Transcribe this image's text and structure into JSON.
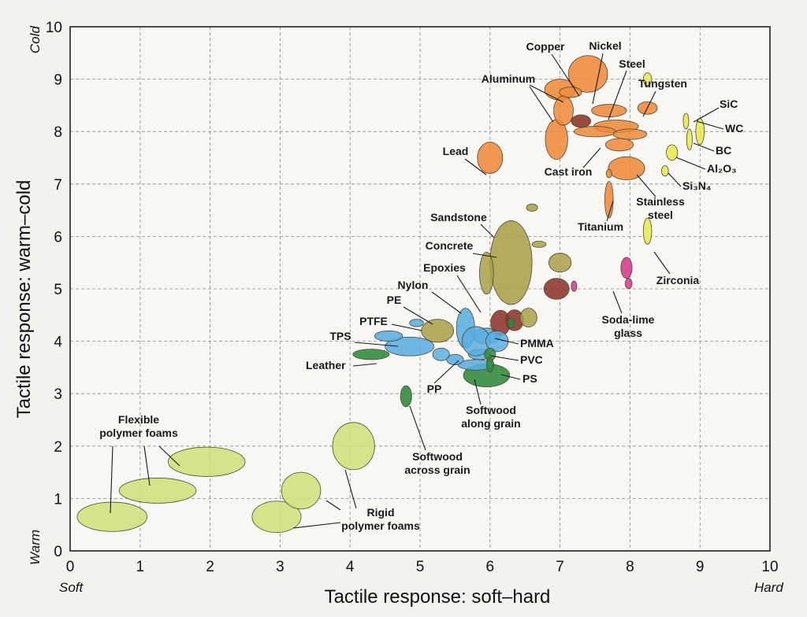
{
  "chart_data": {
    "type": "scatter",
    "title": "",
    "xlabel": "Tactile response: soft–hard",
    "ylabel": "Tactile response: warm–cold",
    "xlim": [
      0,
      10
    ],
    "ylim": [
      0,
      10
    ],
    "x_ticks": [
      "0",
      "1",
      "2",
      "3",
      "4",
      "5",
      "6",
      "7",
      "8",
      "9",
      "10"
    ],
    "y_ticks": [
      "0",
      "1",
      "2",
      "3",
      "4",
      "5",
      "6",
      "7",
      "8",
      "9",
      "10"
    ],
    "x_end_labels": {
      "low": "Soft",
      "high": "Hard"
    },
    "y_end_labels": {
      "low": "Warm",
      "high": "Cold"
    },
    "grid": true,
    "colors": {
      "foam": "#cfe07a",
      "metal": "#ee8a3a",
      "metal_dark": "#8b2b20",
      "ceramic": "#e6ea50",
      "glass": "#d63b8c",
      "stone": "#a8a048",
      "polymer": "#5aaee0",
      "wood": "#2f8a3a",
      "reddish": "#8b2f25"
    },
    "materials": [
      {
        "label": "Flexible polymer foams",
        "color": "foam",
        "regions": [
          [
            0.6,
            0.65,
            0.5,
            0.28
          ],
          [
            1.25,
            1.15,
            0.55,
            0.24
          ],
          [
            1.95,
            1.7,
            0.55,
            0.28
          ]
        ]
      },
      {
        "label": "Rigid polymer foams",
        "color": "foam",
        "regions": [
          [
            2.95,
            0.65,
            0.35,
            0.3
          ],
          [
            3.3,
            1.15,
            0.28,
            0.35
          ],
          [
            4.05,
            2.0,
            0.3,
            0.45
          ]
        ]
      },
      {
        "label": "Softwood across grain",
        "color": "wood",
        "regions": [
          [
            4.8,
            2.95,
            0.08,
            0.2
          ]
        ]
      },
      {
        "label": "Softwood along grain",
        "color": "wood",
        "regions": [
          [
            5.95,
            3.35,
            0.33,
            0.22
          ]
        ]
      },
      {
        "label": "Leather",
        "color": "wood",
        "regions": [
          [
            4.3,
            3.75,
            0.26,
            0.1
          ]
        ]
      },
      {
        "label": "PS",
        "color": "polymer",
        "regions": [
          [
            5.8,
            3.55,
            0.26,
            0.1
          ]
        ]
      },
      {
        "label": "PVC",
        "color": "polymer",
        "regions": [
          [
            5.85,
            3.75,
            0.16,
            0.1
          ]
        ]
      },
      {
        "label": "PMMA",
        "color": "polymer",
        "regions": [
          [
            5.95,
            4.1,
            0.2,
            0.15
          ]
        ]
      },
      {
        "label": "PP",
        "color": "polymer",
        "regions": [
          [
            5.5,
            3.65,
            0.12,
            0.1
          ]
        ]
      },
      {
        "label": "TPS",
        "color": "polymer",
        "regions": [
          [
            4.85,
            3.9,
            0.35,
            0.18
          ]
        ]
      },
      {
        "label": "PTFE",
        "color": "polymer",
        "regions": [
          [
            4.55,
            4.1,
            0.2,
            0.1
          ]
        ]
      },
      {
        "label": "PE",
        "color": "polymer",
        "regions": [
          [
            4.95,
            4.35,
            0.1,
            0.07
          ]
        ]
      },
      {
        "label": "Nylon",
        "color": "polymer",
        "regions": [
          [
            5.65,
            4.25,
            0.13,
            0.38
          ]
        ]
      },
      {
        "label": "Epoxies",
        "color": "stone",
        "regions": [
          [
            5.25,
            4.2,
            0.23,
            0.22
          ]
        ]
      },
      {
        "label": "Concrete",
        "color": "stone",
        "regions": [
          [
            6.3,
            5.5,
            0.3,
            0.8
          ]
        ]
      },
      {
        "label": "Sandstone",
        "color": "stone",
        "regions": [
          [
            6.6,
            6.55,
            0.08,
            0.07
          ]
        ]
      },
      {
        "label": "Lead",
        "color": "metal",
        "regions": [
          [
            6.0,
            7.5,
            0.18,
            0.3
          ]
        ]
      },
      {
        "label": "Aluminum",
        "color": "metal",
        "regions": [
          [
            7.0,
            8.8,
            0.22,
            0.2
          ]
        ]
      },
      {
        "label": "Copper",
        "color": "metal",
        "regions": [
          [
            7.4,
            9.1,
            0.28,
            0.35
          ]
        ]
      },
      {
        "label": "Nickel",
        "color": "metal",
        "regions": [
          [
            7.7,
            8.4,
            0.25,
            0.12
          ]
        ]
      },
      {
        "label": "Steel",
        "color": "metal",
        "regions": [
          [
            7.8,
            8.1,
            0.32,
            0.12
          ]
        ]
      },
      {
        "label": "Tungsten",
        "color": "metal",
        "regions": [
          [
            8.25,
            8.45,
            0.14,
            0.12
          ]
        ]
      },
      {
        "label": "Cast iron",
        "color": "metal",
        "regions": [
          [
            6.95,
            7.85,
            0.16,
            0.38
          ]
        ]
      },
      {
        "label": "Titanium",
        "color": "metal",
        "regions": [
          [
            7.7,
            6.7,
            0.06,
            0.35
          ]
        ]
      },
      {
        "label": "Stainless steel",
        "color": "metal",
        "regions": [
          [
            7.95,
            7.3,
            0.26,
            0.22
          ]
        ]
      },
      {
        "label": "SiC",
        "color": "ceramic",
        "regions": [
          [
            8.25,
            9.0,
            0.06,
            0.12
          ]
        ]
      },
      {
        "label": "WC",
        "color": "ceramic",
        "regions": [
          [
            8.8,
            8.2,
            0.04,
            0.15
          ]
        ]
      },
      {
        "label": "BC",
        "color": "ceramic",
        "regions": [
          [
            9.0,
            8.0,
            0.06,
            0.25
          ]
        ]
      },
      {
        "label": "Al₂O₃",
        "color": "ceramic",
        "regions": [
          [
            8.6,
            7.6,
            0.08,
            0.15
          ]
        ]
      },
      {
        "label": "Si₃N₄",
        "color": "ceramic",
        "regions": [
          [
            8.5,
            7.25,
            0.05,
            0.1
          ]
        ]
      },
      {
        "label": "Zirconia",
        "color": "ceramic",
        "regions": [
          [
            8.25,
            6.1,
            0.06,
            0.25
          ]
        ]
      },
      {
        "label": "Soda-lime glass",
        "color": "glass",
        "regions": [
          [
            7.95,
            5.4,
            0.08,
            0.2
          ]
        ]
      }
    ]
  }
}
